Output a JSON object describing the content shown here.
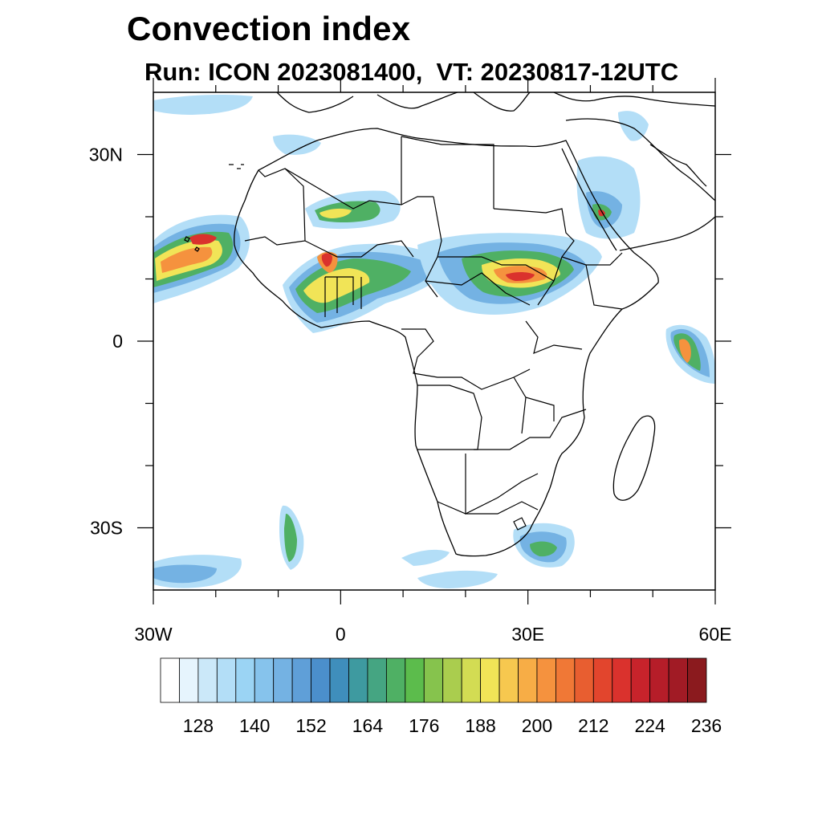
{
  "title": "Convection index",
  "subtitle": "Run: ICON 2023081400,  VT: 20230817-12UTC",
  "map": {
    "lon_range": [
      -30,
      60
    ],
    "lat_range": [
      -40,
      40
    ],
    "lat_labels": [
      {
        "lat": 30,
        "text": "30N"
      },
      {
        "lat": 0,
        "text": "0"
      },
      {
        "lat": -30,
        "text": "30S"
      }
    ],
    "lon_labels": [
      {
        "lon": -30,
        "text": "30W"
      },
      {
        "lon": 0,
        "text": "0"
      },
      {
        "lon": 30,
        "text": "30E"
      },
      {
        "lon": 60,
        "text": "60E"
      }
    ]
  },
  "colorbar": {
    "levels": [
      122,
      125,
      128,
      131,
      134,
      137,
      140,
      143,
      146,
      149,
      152,
      155,
      158,
      161,
      164,
      167,
      170,
      173,
      176,
      179,
      182,
      185,
      188,
      191,
      194,
      197,
      200,
      203,
      206,
      209,
      212,
      215,
      218,
      221,
      224,
      227,
      230,
      233,
      236,
      239
    ],
    "labels": [
      "128",
      "140",
      "152",
      "164",
      "176",
      "188",
      "200",
      "212",
      "224",
      "236"
    ],
    "colors": [
      "#ffffff",
      "#e6f4fd",
      "#cbe8f9",
      "#b3def7",
      "#9bd4f4",
      "#86c3ec",
      "#74b2e3",
      "#5f9fd8",
      "#4b8fcc",
      "#3f8ebc",
      "#3e9aa0",
      "#45a582",
      "#4fb064",
      "#5cbc4c",
      "#86c34d",
      "#aacd4e",
      "#d3dc53",
      "#f1e457",
      "#f7c84f",
      "#f7ad46",
      "#f5923e",
      "#f07836",
      "#e85e30",
      "#e2452d",
      "#da322d",
      "#c8232b",
      "#b61d29",
      "#a11b25",
      "#8b1a1e"
    ]
  },
  "fields": {
    "colors": {
      "light": "#b3def7",
      "mid": "#74b2e3",
      "green": "#4fb064",
      "yellow": "#f1e457",
      "orange": "#f5923e",
      "red": "#da322d"
    }
  }
}
